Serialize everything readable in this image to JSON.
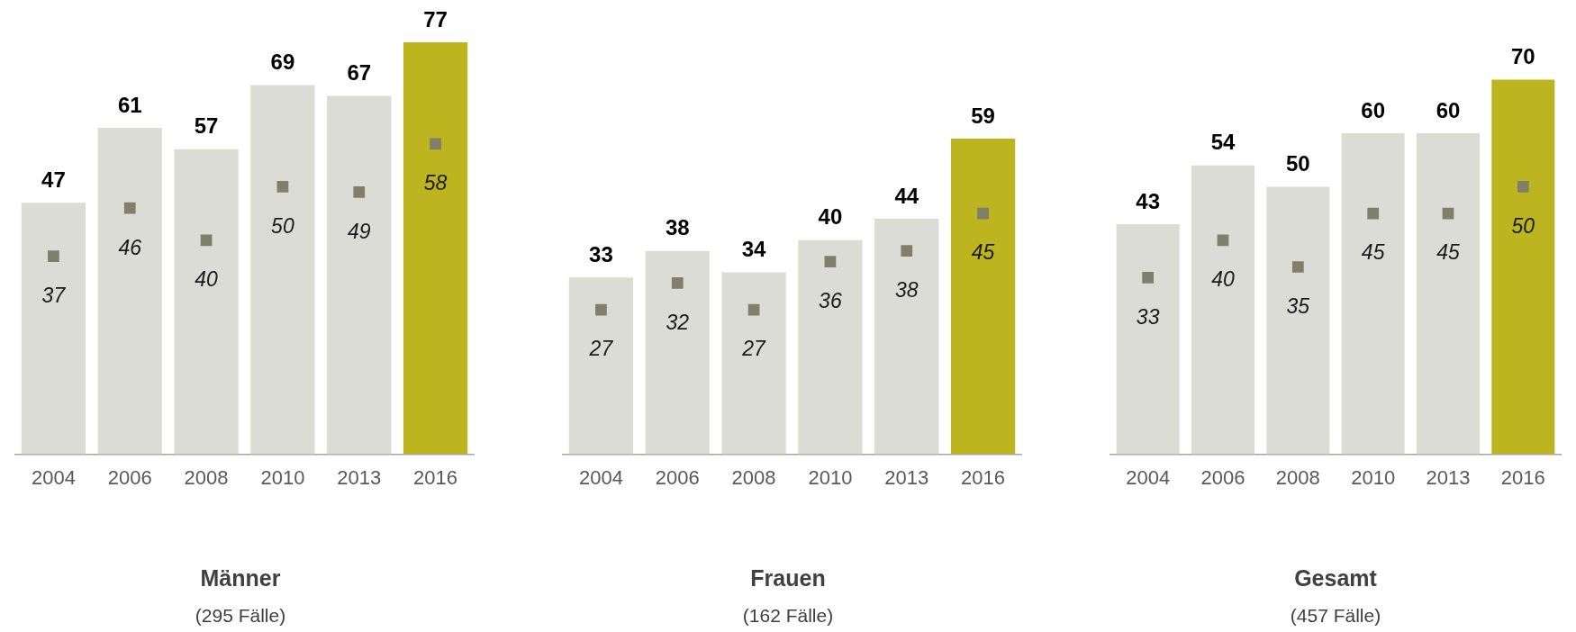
{
  "chart_data": [
    {
      "type": "bar",
      "title": "Männer",
      "subtitle": "(295 Fälle)",
      "categories": [
        "2004",
        "2006",
        "2008",
        "2010",
        "2013",
        "2016"
      ],
      "data_labels": true,
      "grid": false,
      "legend": false,
      "marker": "square",
      "series": [
        {
          "type": "bar",
          "values": [
            47,
            61,
            57,
            69,
            67,
            77
          ],
          "colors": [
            "#dcdcd6",
            "#dcdcd6",
            "#dcdcd6",
            "#dcdcd6",
            "#dcdcd6",
            "#bdb520"
          ]
        },
        {
          "type": "scatter",
          "values": [
            37,
            46,
            40,
            50,
            49,
            58
          ],
          "color": "#7f7f6a"
        }
      ]
    },
    {
      "type": "bar",
      "title": "Frauen",
      "subtitle": "(162 Fälle)",
      "categories": [
        "2004",
        "2006",
        "2008",
        "2010",
        "2013",
        "2016"
      ],
      "data_labels": true,
      "grid": false,
      "legend": false,
      "marker": "square",
      "series": [
        {
          "type": "bar",
          "values": [
            33,
            38,
            34,
            40,
            44,
            59
          ],
          "colors": [
            "#dcdcd6",
            "#dcdcd6",
            "#dcdcd6",
            "#dcdcd6",
            "#dcdcd6",
            "#bdb520"
          ]
        },
        {
          "type": "scatter",
          "values": [
            27,
            32,
            27,
            36,
            38,
            45
          ],
          "color": "#7f7f6a"
        }
      ]
    },
    {
      "type": "bar",
      "title": "Gesamt",
      "subtitle": "(457 Fälle)",
      "categories": [
        "2004",
        "2006",
        "2008",
        "2010",
        "2013",
        "2016"
      ],
      "data_labels": true,
      "grid": false,
      "legend": false,
      "marker": "square",
      "series": [
        {
          "type": "bar",
          "values": [
            43,
            54,
            50,
            60,
            60,
            70
          ],
          "colors": [
            "#dcdcd6",
            "#dcdcd6",
            "#dcdcd6",
            "#dcdcd6",
            "#dcdcd6",
            "#bdb520"
          ]
        },
        {
          "type": "scatter",
          "values": [
            33,
            40,
            35,
            45,
            45,
            50
          ],
          "color": "#7f7f6a"
        }
      ]
    }
  ]
}
